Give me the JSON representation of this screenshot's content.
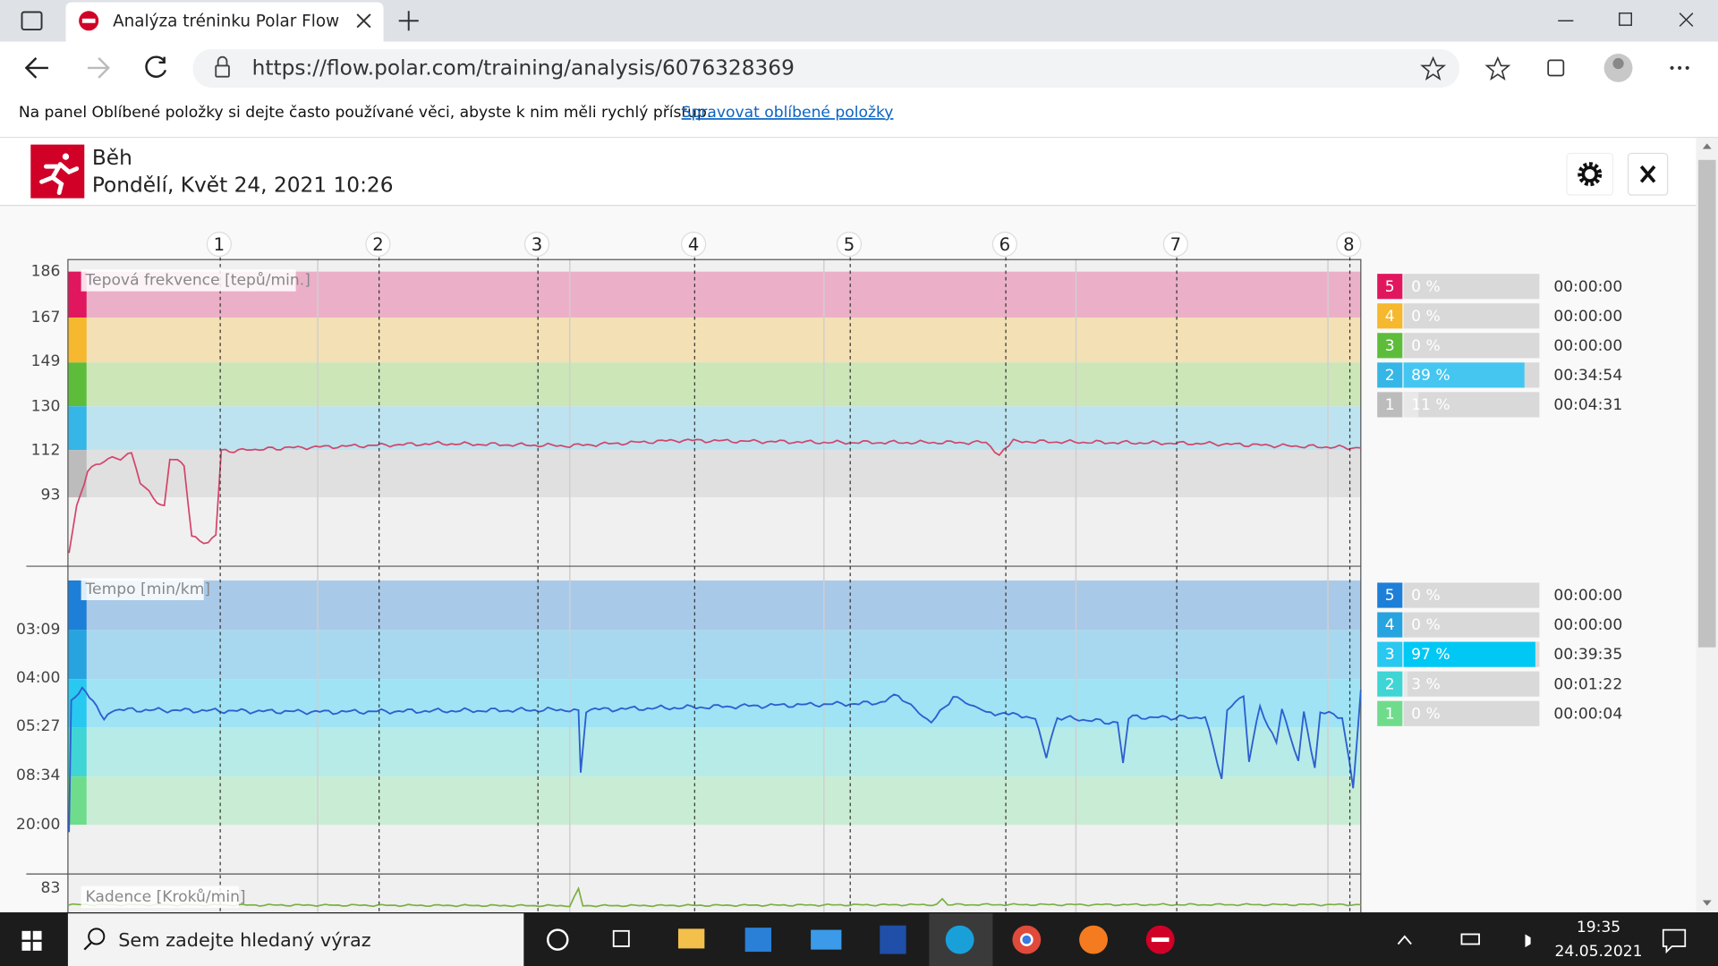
{
  "browser": {
    "tab_title": "Analýza tréninku Polar Flow",
    "url": "https://flow.polar.com/training/analysis/6076328369",
    "favorites_hint": "Na panel Oblíbené položky si dejte často používané věci, abyste k nim měli rychlý přístup.",
    "favorites_link": "Spravovat oblíbené položky"
  },
  "header": {
    "sport": "Běh",
    "date": "Pondělí, Květ 24, 2021 10:26"
  },
  "laps": [
    "1",
    "2",
    "3",
    "4",
    "5",
    "6",
    "7",
    "8"
  ],
  "heart_rate": {
    "label": "Tepová frekvence [tepů/min.]",
    "yticks": [
      "186",
      "167",
      "149",
      "130",
      "112",
      "93"
    ],
    "zones": [
      {
        "zone": "5",
        "percent": "0 %",
        "time": "00:00:00"
      },
      {
        "zone": "4",
        "percent": "0 %",
        "time": "00:00:00"
      },
      {
        "zone": "3",
        "percent": "0 %",
        "time": "00:00:00"
      },
      {
        "zone": "2",
        "percent": "89 %",
        "time": "00:34:54"
      },
      {
        "zone": "1",
        "percent": "11 %",
        "time": "00:04:31"
      }
    ]
  },
  "pace": {
    "label": "Tempo [min/km]",
    "yticks": [
      "03:09",
      "04:00",
      "05:27",
      "08:34",
      "20:00"
    ],
    "zones": [
      {
        "zone": "5",
        "percent": "0 %",
        "time": "00:00:00"
      },
      {
        "zone": "4",
        "percent": "0 %",
        "time": "00:00:00"
      },
      {
        "zone": "3",
        "percent": "97 %",
        "time": "00:39:35"
      },
      {
        "zone": "2",
        "percent": "3 %",
        "time": "00:01:22"
      },
      {
        "zone": "1",
        "percent": "0 %",
        "time": "00:00:04"
      }
    ]
  },
  "cadence": {
    "label": "Kadence [Kroků/min]",
    "ytick": "83"
  },
  "taskbar": {
    "search": "Sem zadejte hledaný výraz",
    "time": "19:35",
    "date": "24.05.2021"
  }
}
